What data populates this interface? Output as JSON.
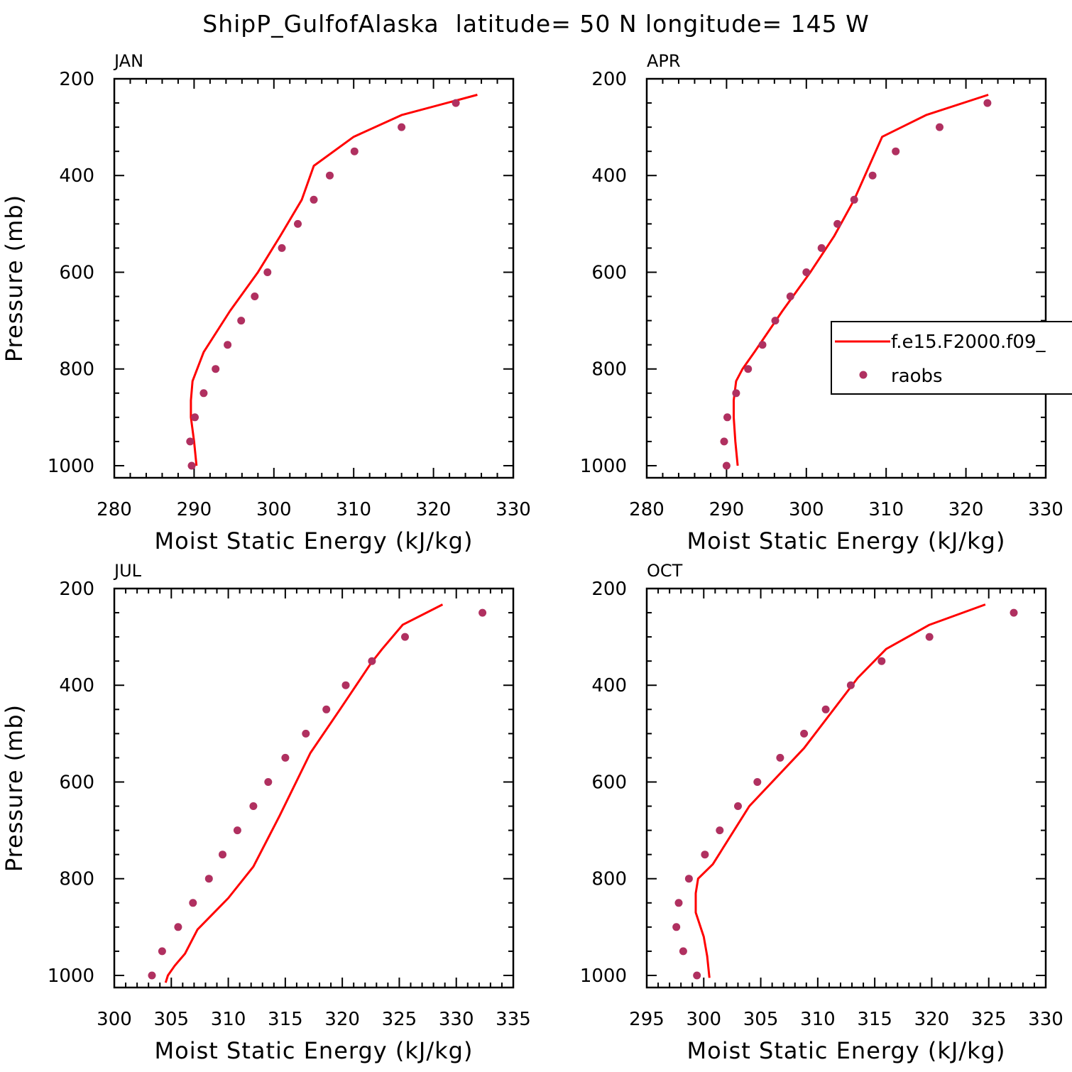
{
  "title": "ShipP_GulfofAlaska  latitude= 50 N longitude= 145 W",
  "colors": {
    "model": "#ff0000",
    "obs": "#b03060"
  },
  "legend": {
    "model_label": "f.e15.F2000.f09_",
    "obs_label": "raobs"
  },
  "chart_data": [
    {
      "type": "line",
      "panel": "JAN",
      "xlabel": "Moist Static Energy (kJ/kg)",
      "ylabel": "Pressure (mb)",
      "xlim": [
        280,
        330
      ],
      "ylim": [
        200,
        1025
      ],
      "x_ticks": [
        280,
        290,
        300,
        310,
        320,
        330
      ],
      "y_ticks": [
        200,
        400,
        600,
        800,
        1000
      ],
      "legend": false,
      "series": [
        {
          "name": "f.e15.F2000.f09_",
          "kind": "line",
          "x": [
            290.3,
            290.0,
            289.6,
            289.6,
            289.8,
            291.2,
            294.5,
            298.0,
            300.8,
            303.5,
            305.0,
            310.0,
            316.0,
            325.5
          ],
          "y": [
            1000,
            950,
            900,
            865,
            825,
            765,
            680,
            600,
            525,
            450,
            380,
            320,
            275,
            233
          ]
        },
        {
          "name": "raobs",
          "kind": "scatter",
          "x": [
            289.7,
            289.5,
            290.1,
            291.2,
            292.7,
            294.2,
            295.9,
            297.6,
            299.2,
            301.0,
            303.0,
            305.0,
            307.0,
            310.1,
            316.0,
            322.8
          ],
          "y": [
            1000,
            950,
            900,
            850,
            800,
            750,
            700,
            650,
            600,
            550,
            500,
            450,
            400,
            350,
            300,
            250
          ]
        }
      ]
    },
    {
      "type": "line",
      "panel": "APR",
      "xlabel": "Moist Static Energy (kJ/kg)",
      "ylabel": "",
      "xlim": [
        280,
        330
      ],
      "ylim": [
        200,
        1025
      ],
      "x_ticks": [
        280,
        290,
        300,
        310,
        320,
        330
      ],
      "y_ticks": [
        200,
        400,
        600,
        800,
        1000
      ],
      "legend": true,
      "series": [
        {
          "name": "f.e15.F2000.f09_",
          "kind": "line",
          "x": [
            291.4,
            291.1,
            290.9,
            290.9,
            291.2,
            292.0,
            293.5,
            297.0,
            300.5,
            303.5,
            306.0,
            309.5,
            315.0,
            322.8
          ],
          "y": [
            1000,
            950,
            900,
            865,
            825,
            800,
            765,
            680,
            600,
            525,
            450,
            320,
            275,
            233
          ]
        },
        {
          "name": "raobs",
          "kind": "scatter",
          "x": [
            290.0,
            289.7,
            290.1,
            291.2,
            292.7,
            294.5,
            296.1,
            298.0,
            300.0,
            301.9,
            303.9,
            306.0,
            308.3,
            311.2,
            316.7,
            322.7
          ],
          "y": [
            1000,
            950,
            900,
            850,
            800,
            750,
            700,
            650,
            600,
            550,
            500,
            450,
            400,
            350,
            300,
            250
          ]
        }
      ]
    },
    {
      "type": "line",
      "panel": "JUL",
      "xlabel": "Moist Static Energy (kJ/kg)",
      "ylabel": "Pressure (mb)",
      "xlim": [
        300,
        335
      ],
      "ylim": [
        200,
        1025
      ],
      "x_ticks": [
        300,
        305,
        310,
        315,
        320,
        325,
        330,
        335
      ],
      "y_ticks": [
        200,
        400,
        600,
        800,
        1000
      ],
      "legend": false,
      "series": [
        {
          "name": "f.e15.F2000.f09_",
          "kind": "line",
          "x": [
            304.5,
            304.7,
            305.3,
            306.2,
            307.3,
            310.0,
            312.2,
            314.5,
            317.2,
            319.8,
            322.5,
            323.5,
            325.3,
            328.8
          ],
          "y": [
            1015,
            1000,
            980,
            955,
            905,
            840,
            775,
            670,
            540,
            450,
            355,
            325,
            275,
            233
          ]
        },
        {
          "name": "raobs",
          "kind": "scatter",
          "x": [
            303.3,
            304.2,
            305.6,
            306.9,
            308.3,
            309.5,
            310.8,
            312.2,
            313.5,
            315.0,
            316.8,
            318.6,
            320.3,
            322.6,
            325.5,
            332.3
          ],
          "y": [
            1000,
            950,
            900,
            850,
            800,
            750,
            700,
            650,
            600,
            550,
            500,
            450,
            400,
            350,
            300,
            250
          ]
        }
      ]
    },
    {
      "type": "line",
      "panel": "OCT",
      "xlabel": "Moist Static Energy (kJ/kg)",
      "ylabel": "",
      "xlim": [
        295,
        330
      ],
      "ylim": [
        200,
        1025
      ],
      "x_ticks": [
        295,
        300,
        305,
        310,
        315,
        320,
        325,
        330
      ],
      "y_ticks": [
        200,
        400,
        600,
        800,
        1000
      ],
      "legend": false,
      "series": [
        {
          "name": "f.e15.F2000.f09_",
          "kind": "line",
          "x": [
            300.5,
            300.3,
            300.0,
            299.3,
            299.3,
            299.5,
            300.8,
            304.0,
            308.8,
            313.5,
            316.0,
            319.8,
            324.7
          ],
          "y": [
            1005,
            960,
            920,
            870,
            830,
            800,
            770,
            650,
            530,
            385,
            325,
            275,
            233
          ]
        },
        {
          "name": "raobs",
          "kind": "scatter",
          "x": [
            299.4,
            298.2,
            297.6,
            297.8,
            298.7,
            300.1,
            301.4,
            303.0,
            304.7,
            306.7,
            308.8,
            310.7,
            312.9,
            315.6,
            319.8,
            327.2
          ],
          "y": [
            1000,
            950,
            900,
            850,
            800,
            750,
            700,
            650,
            600,
            550,
            500,
            450,
            400,
            350,
            300,
            250
          ]
        }
      ]
    }
  ]
}
